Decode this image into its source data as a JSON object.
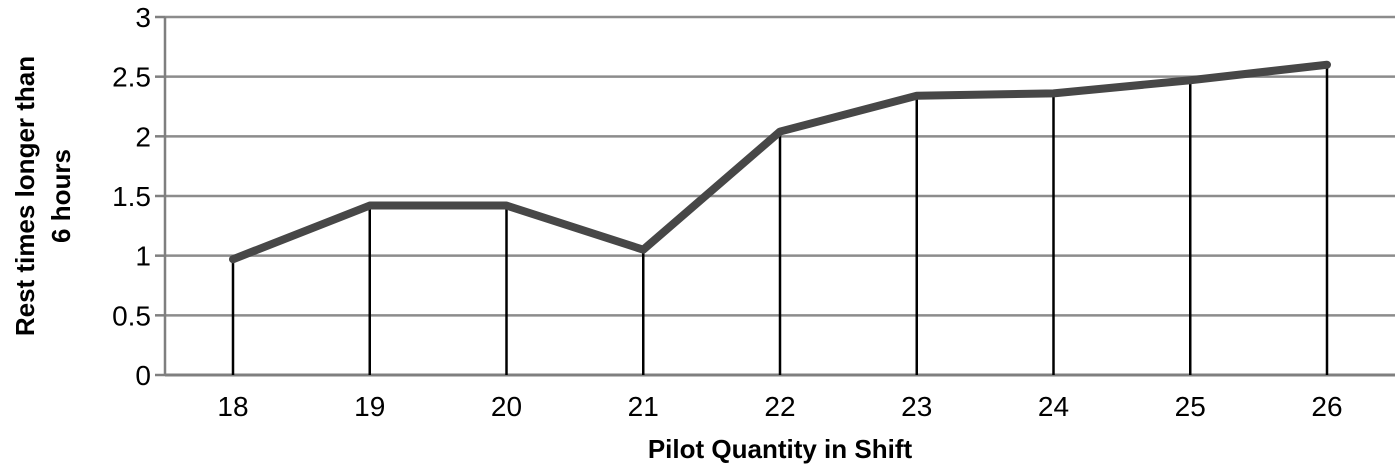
{
  "chart_data": {
    "type": "line",
    "title": "",
    "xlabel": "Pilot Quantity in Shift",
    "ylabel": "Rest times longer than 6 hours",
    "ylabel_lines": [
      "Rest times longer than",
      "6 hours"
    ],
    "categories": [
      "18",
      "19",
      "20",
      "21",
      "22",
      "23",
      "24",
      "25",
      "26"
    ],
    "values": [
      0.97,
      1.42,
      1.42,
      1.05,
      2.04,
      2.34,
      2.36,
      2.47,
      2.6
    ],
    "ylim": [
      0,
      3
    ],
    "yticks": [
      "0",
      "0.5",
      "1",
      "1.5",
      "2",
      "2.5",
      "3"
    ],
    "grid": true,
    "drop_lines": true,
    "legend": null,
    "colors": {
      "line": "#474747",
      "grid": "#8c8c8c",
      "drop_line": "#000000",
      "axis": "#7f7f7f"
    }
  }
}
